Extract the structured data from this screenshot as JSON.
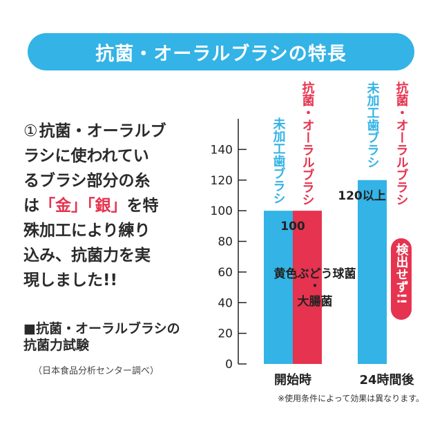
{
  "banner": {
    "title": "抗菌・オーラルブラシの特長"
  },
  "feature": {
    "num": "①",
    "line1": "抗菌・オーラルブ",
    "line2": "ラシに使われてい",
    "line3": "るブラシ部分の糸",
    "line4_pre": "は",
    "line4_gold": "「金」",
    "line4_silver": "「銀」",
    "line4_post": "を特",
    "line5": "殊加工により練り",
    "line6": "込み、抗菌力を実",
    "line7": "現しました!!"
  },
  "test": {
    "title_line1": "■抗菌・オーラルブラシの",
    "title_line2": "抗菌力試験",
    "subtitle": "（日本食品分析センター調べ）"
  },
  "footnote": "※使用条件によって効果は異なります。",
  "colors": {
    "blue": "#33b3e6",
    "red": "#e6334f",
    "banner": "#33b3e6"
  },
  "chart_data": {
    "type": "bar",
    "categories": [
      "開始時",
      "24時間後"
    ],
    "series": [
      {
        "name": "未加工歯ブラシ",
        "color": "#33b3e6",
        "values": [
          100,
          120
        ]
      },
      {
        "name": "抗菌・オーラルブラシ",
        "color": "#e6334f",
        "values": [
          100,
          0
        ]
      }
    ],
    "ylim": [
      0,
      160
    ],
    "yticks": [
      0,
      20,
      40,
      60,
      80,
      100,
      120,
      140
    ],
    "data_labels": {
      "start": "100",
      "after_blue": "120以上",
      "after_red": "検出せず!!"
    },
    "annotation": {
      "line1": "黄色ぶどう球菌",
      "sep": "・",
      "line2": "大腸菌"
    }
  }
}
